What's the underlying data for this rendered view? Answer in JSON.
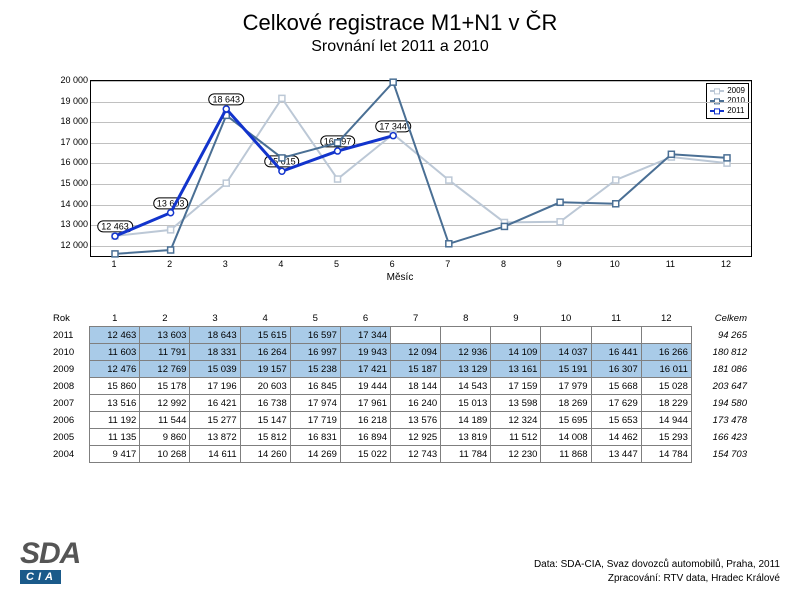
{
  "title": "Celkové registrace M1+N1 v ČR",
  "subtitle": "Srovnání let 2011 a 2010",
  "xaxis_title": "Měsíc",
  "chart": {
    "type": "line",
    "ylim": [
      11500,
      20000
    ],
    "ytick_step": 1000,
    "x_categories": [
      1,
      2,
      3,
      4,
      5,
      6,
      7,
      8,
      9,
      10,
      11,
      12
    ],
    "background_color": "#ffffff",
    "grid_color": "#c0c0c0",
    "border_color": "#000000",
    "series": [
      {
        "name": "2009",
        "color": "#bcc8d6",
        "width": 2,
        "marker": "square",
        "marker_fill": "#ffffff",
        "values": [
          12476,
          12769,
          15039,
          19157,
          15238,
          17421,
          15187,
          13129,
          13161,
          15191,
          16307,
          16011
        ]
      },
      {
        "name": "2010",
        "color": "#4a6f94",
        "width": 2,
        "marker": "square",
        "marker_fill": "#ffffff",
        "values": [
          11603,
          11791,
          18331,
          16264,
          16997,
          19943,
          12094,
          12936,
          14109,
          14037,
          16441,
          16266
        ]
      },
      {
        "name": "2011",
        "color": "#1234cc",
        "width": 3,
        "marker": "circle",
        "marker_fill": "#ffffff",
        "values": [
          12463,
          13603,
          18643,
          15615,
          16597,
          17344
        ],
        "labels": [
          12463,
          13603,
          18643,
          15615,
          16597,
          17344
        ]
      }
    ],
    "legend_position": "top-right"
  },
  "table": {
    "header_year": "Rok",
    "header_total": "Celkem",
    "months": [
      1,
      2,
      3,
      4,
      5,
      6,
      7,
      8,
      9,
      10,
      11,
      12
    ],
    "highlight_years": [
      "2011",
      "2010",
      "2009"
    ],
    "highlight_color": "#a9cbe8",
    "rows": [
      {
        "year": "2011",
        "total": "94 265",
        "cells": [
          "12 463",
          "13 603",
          "18 643",
          "15 615",
          "16 597",
          "17 344",
          "",
          "",
          "",
          "",
          "",
          ""
        ]
      },
      {
        "year": "2010",
        "total": "180 812",
        "cells": [
          "11 603",
          "11 791",
          "18 331",
          "16 264",
          "16 997",
          "19 943",
          "12 094",
          "12 936",
          "14 109",
          "14 037",
          "16 441",
          "16 266"
        ]
      },
      {
        "year": "2009",
        "total": "181 086",
        "cells": [
          "12 476",
          "12 769",
          "15 039",
          "19 157",
          "15 238",
          "17 421",
          "15 187",
          "13 129",
          "13 161",
          "15 191",
          "16 307",
          "16 011"
        ]
      },
      {
        "year": "2008",
        "total": "203 647",
        "cells": [
          "15 860",
          "15 178",
          "17 196",
          "20 603",
          "16 845",
          "19 444",
          "18 144",
          "14 543",
          "17 159",
          "17 979",
          "15 668",
          "15 028"
        ]
      },
      {
        "year": "2007",
        "total": "194 580",
        "cells": [
          "13 516",
          "12 992",
          "16 421",
          "16 738",
          "17 974",
          "17 961",
          "16 240",
          "15 013",
          "13 598",
          "18 269",
          "17 629",
          "18 229"
        ]
      },
      {
        "year": "2006",
        "total": "173 478",
        "cells": [
          "11 192",
          "11 544",
          "15 277",
          "15 147",
          "17 719",
          "16 218",
          "13 576",
          "14 189",
          "12 324",
          "15 695",
          "15 653",
          "14 944"
        ]
      },
      {
        "year": "2005",
        "total": "166 423",
        "cells": [
          "11 135",
          "9 860",
          "13 872",
          "15 812",
          "16 831",
          "16 894",
          "12 925",
          "13 819",
          "11 512",
          "14 008",
          "14 462",
          "15 293"
        ]
      },
      {
        "year": "2004",
        "total": "154 703",
        "cells": [
          "9 417",
          "10 268",
          "14 611",
          "14 260",
          "14 269",
          "15 022",
          "12 743",
          "11 784",
          "12 230",
          "11 868",
          "13 447",
          "14 784"
        ]
      }
    ]
  },
  "legend": [
    "2009",
    "2010",
    "2011"
  ],
  "footer": {
    "line1": "Data: SDA-CIA, Svaz dovozců automobilů, Praha, 2011",
    "line2": "Zpracování: RTV data, Hradec Králové"
  },
  "logo": {
    "top": "SDA",
    "bottom": "CIA"
  }
}
